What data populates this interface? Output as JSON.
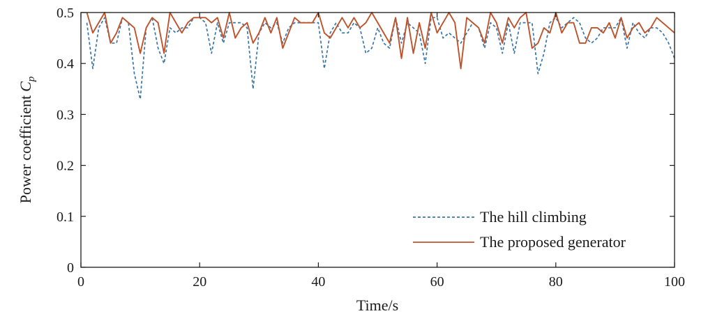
{
  "chart_data": {
    "type": "line",
    "title": "",
    "xlabel": "Time/s",
    "ylabel": "Power coefficient",
    "ylabel_symbol": "C",
    "ylabel_subscript": "p",
    "xlim": [
      0,
      100
    ],
    "ylim": [
      0,
      0.5
    ],
    "xticks": [
      0,
      20,
      40,
      60,
      80,
      100
    ],
    "xtick_labels": [
      "0",
      "20",
      "40",
      "60",
      "80",
      "100"
    ],
    "yticks": [
      0,
      0.1,
      0.2,
      0.3,
      0.4,
      0.5
    ],
    "ytick_labels": [
      "0",
      "0.1",
      "0.2",
      "0.3",
      "0.4",
      "0.5"
    ],
    "grid": false,
    "legend_position": "bottom-right",
    "x": [
      1,
      2,
      3,
      4,
      5,
      6,
      7,
      8,
      9,
      10,
      11,
      12,
      13,
      14,
      15,
      16,
      17,
      18,
      19,
      20,
      21,
      22,
      23,
      24,
      25,
      26,
      27,
      28,
      29,
      30,
      31,
      32,
      33,
      34,
      35,
      36,
      37,
      38,
      39,
      40,
      41,
      42,
      43,
      44,
      45,
      46,
      47,
      48,
      49,
      50,
      51,
      52,
      53,
      54,
      55,
      56,
      57,
      58,
      59,
      60,
      61,
      62,
      63,
      64,
      65,
      66,
      67,
      68,
      69,
      70,
      71,
      72,
      73,
      74,
      75,
      76,
      77,
      78,
      79,
      80,
      81,
      82,
      83,
      84,
      85,
      86,
      87,
      88,
      89,
      90,
      91,
      92,
      93,
      94,
      95,
      96,
      97,
      98,
      99,
      100
    ],
    "series": [
      {
        "name": "The hill climbing",
        "color": "#3a75a8",
        "style": "dashed",
        "values": [
          0.48,
          0.39,
          0.47,
          0.49,
          0.44,
          0.44,
          0.49,
          0.48,
          0.38,
          0.33,
          0.47,
          0.49,
          0.43,
          0.4,
          0.47,
          0.46,
          0.47,
          0.47,
          0.49,
          0.49,
          0.48,
          0.42,
          0.48,
          0.44,
          0.48,
          0.48,
          0.48,
          0.47,
          0.35,
          0.46,
          0.48,
          0.47,
          0.48,
          0.44,
          0.47,
          0.48,
          0.48,
          0.48,
          0.48,
          0.48,
          0.39,
          0.46,
          0.48,
          0.46,
          0.46,
          0.48,
          0.47,
          0.42,
          0.43,
          0.47,
          0.44,
          0.43,
          0.49,
          0.44,
          0.48,
          0.47,
          0.46,
          0.4,
          0.49,
          0.49,
          0.45,
          0.46,
          0.45,
          0.44,
          0.46,
          0.48,
          0.47,
          0.43,
          0.48,
          0.47,
          0.42,
          0.48,
          0.42,
          0.48,
          0.48,
          0.48,
          0.38,
          0.42,
          0.48,
          0.49,
          0.47,
          0.48,
          0.49,
          0.48,
          0.45,
          0.44,
          0.45,
          0.47,
          0.47,
          0.47,
          0.49,
          0.43,
          0.48,
          0.46,
          0.45,
          0.47,
          0.47,
          0.46,
          0.44,
          0.41
        ]
      },
      {
        "name": "The proposed generator",
        "color": "#c0522a",
        "style": "solid",
        "values": [
          0.5,
          0.46,
          0.48,
          0.5,
          0.44,
          0.46,
          0.49,
          0.48,
          0.47,
          0.42,
          0.47,
          0.49,
          0.48,
          0.42,
          0.5,
          0.48,
          0.46,
          0.48,
          0.49,
          0.49,
          0.49,
          0.48,
          0.49,
          0.45,
          0.5,
          0.45,
          0.47,
          0.48,
          0.44,
          0.46,
          0.49,
          0.46,
          0.49,
          0.43,
          0.46,
          0.49,
          0.48,
          0.48,
          0.48,
          0.5,
          0.46,
          0.45,
          0.47,
          0.49,
          0.47,
          0.49,
          0.47,
          0.48,
          0.5,
          0.48,
          0.46,
          0.44,
          0.49,
          0.41,
          0.49,
          0.42,
          0.48,
          0.43,
          0.5,
          0.46,
          0.48,
          0.5,
          0.48,
          0.39,
          0.49,
          0.48,
          0.47,
          0.44,
          0.5,
          0.48,
          0.44,
          0.49,
          0.47,
          0.49,
          0.5,
          0.43,
          0.44,
          0.47,
          0.46,
          0.5,
          0.46,
          0.48,
          0.48,
          0.44,
          0.44,
          0.47,
          0.47,
          0.46,
          0.48,
          0.45,
          0.49,
          0.45,
          0.47,
          0.48,
          0.46,
          0.47,
          0.49,
          0.48,
          0.47,
          0.46
        ]
      }
    ]
  }
}
